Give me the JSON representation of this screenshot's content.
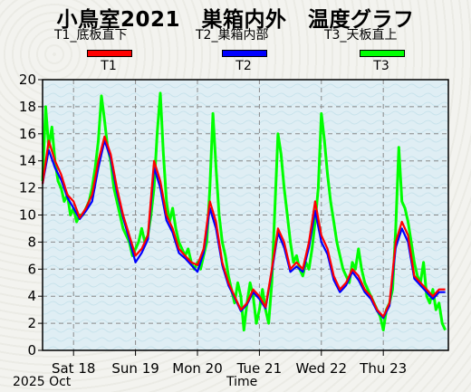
{
  "title": "小鳥室2021　巣箱内外　温度グラフ",
  "subtitles": [
    "T1_底板直下",
    "T2_巣箱内部",
    "T3_天板直上"
  ],
  "legend": [
    {
      "label": "T1",
      "color": "#ff0000"
    },
    {
      "label": "T2",
      "color": "#0000ff"
    },
    {
      "label": "T3",
      "color": "#00ff00"
    }
  ],
  "footer": {
    "year_month": "2025 Oct",
    "xlabel": "Time"
  },
  "chart_data": {
    "type": "line",
    "title": "小鳥室2021　巣箱内外　温度グラフ",
    "xlabel": "Time",
    "ylabel": "",
    "ylim": [
      0,
      20
    ],
    "yticks": [
      0,
      2,
      4,
      6,
      8,
      10,
      12,
      14,
      16,
      18,
      20
    ],
    "xlim_days": [
      0,
      6.55
    ],
    "xticks": [
      {
        "label": "Sat 18",
        "day": 0.5
      },
      {
        "label": "Sun 19",
        "day": 1.5
      },
      {
        "label": "Mon 20",
        "day": 2.5
      },
      {
        "label": "Tue 21",
        "day": 3.5
      },
      {
        "label": "Wed 22",
        "day": 4.5
      },
      {
        "label": "Thu 23",
        "day": 5.5
      }
    ],
    "grid": true,
    "series": [
      {
        "name": "T1",
        "color": "#ff0000",
        "x": [
          0.0,
          0.1,
          0.2,
          0.3,
          0.4,
          0.5,
          0.6,
          0.7,
          0.8,
          0.9,
          1.0,
          1.1,
          1.2,
          1.3,
          1.4,
          1.5,
          1.6,
          1.7,
          1.8,
          1.9,
          2.0,
          2.1,
          2.2,
          2.3,
          2.4,
          2.5,
          2.6,
          2.7,
          2.8,
          2.9,
          3.0,
          3.1,
          3.2,
          3.3,
          3.4,
          3.5,
          3.6,
          3.7,
          3.8,
          3.9,
          4.0,
          4.1,
          4.2,
          4.3,
          4.4,
          4.5,
          4.6,
          4.7,
          4.8,
          4.9,
          5.0,
          5.1,
          5.2,
          5.3,
          5.4,
          5.5,
          5.6,
          5.7,
          5.8,
          5.9,
          6.0,
          6.1,
          6.2,
          6.3,
          6.4,
          6.5
        ],
        "y": [
          12.3,
          15.5,
          14.0,
          13.0,
          11.5,
          11.0,
          9.8,
          10.5,
          11.5,
          14.0,
          15.8,
          14.5,
          12.0,
          10.0,
          8.5,
          7.0,
          7.5,
          8.5,
          14.0,
          12.5,
          10.0,
          9.0,
          7.5,
          7.0,
          6.5,
          6.3,
          7.5,
          11.0,
          9.5,
          6.5,
          5.0,
          4.0,
          3.0,
          3.5,
          4.5,
          4.0,
          3.2,
          6.0,
          9.0,
          8.0,
          6.0,
          6.5,
          6.0,
          8.0,
          11.0,
          8.5,
          7.5,
          5.5,
          4.5,
          5.0,
          6.0,
          5.5,
          4.5,
          4.0,
          3.0,
          2.5,
          3.5,
          8.0,
          9.5,
          8.5,
          5.5,
          5.0,
          4.5,
          4.0,
          4.5,
          4.5
        ]
      },
      {
        "name": "T2",
        "color": "#0000ff",
        "x": [
          0.0,
          0.1,
          0.2,
          0.3,
          0.4,
          0.5,
          0.6,
          0.7,
          0.8,
          0.9,
          1.0,
          1.1,
          1.2,
          1.3,
          1.4,
          1.5,
          1.6,
          1.7,
          1.8,
          1.9,
          2.0,
          2.1,
          2.2,
          2.3,
          2.4,
          2.5,
          2.6,
          2.7,
          2.8,
          2.9,
          3.0,
          3.1,
          3.2,
          3.3,
          3.4,
          3.5,
          3.6,
          3.7,
          3.8,
          3.9,
          4.0,
          4.1,
          4.2,
          4.3,
          4.4,
          4.5,
          4.6,
          4.7,
          4.8,
          4.9,
          5.0,
          5.1,
          5.2,
          5.3,
          5.4,
          5.5,
          5.6,
          5.7,
          5.8,
          5.9,
          6.0,
          6.1,
          6.2,
          6.3,
          6.4,
          6.5
        ],
        "y": [
          12.3,
          14.8,
          13.5,
          12.6,
          11.3,
          10.5,
          9.7,
          10.3,
          11.0,
          13.5,
          15.5,
          14.2,
          11.7,
          9.8,
          8.2,
          6.5,
          7.2,
          8.2,
          13.5,
          12.0,
          9.6,
          8.7,
          7.2,
          6.8,
          6.3,
          5.8,
          7.2,
          10.5,
          9.0,
          6.3,
          4.8,
          3.9,
          2.9,
          3.4,
          4.3,
          3.8,
          3.1,
          5.8,
          8.7,
          7.6,
          5.8,
          6.2,
          5.8,
          7.6,
          10.3,
          8.0,
          7.1,
          5.2,
          4.3,
          4.8,
          5.8,
          5.2,
          4.3,
          3.8,
          2.9,
          2.4,
          3.3,
          7.6,
          9.0,
          8.0,
          5.3,
          4.8,
          4.3,
          3.8,
          4.3,
          4.3
        ]
      },
      {
        "name": "T3",
        "color": "#00ff00",
        "x": [
          0.0,
          0.05,
          0.1,
          0.15,
          0.2,
          0.25,
          0.3,
          0.35,
          0.4,
          0.45,
          0.5,
          0.55,
          0.6,
          0.65,
          0.7,
          0.75,
          0.8,
          0.85,
          0.9,
          0.95,
          1.0,
          1.05,
          1.1,
          1.15,
          1.2,
          1.25,
          1.3,
          1.35,
          1.4,
          1.45,
          1.5,
          1.55,
          1.6,
          1.65,
          1.7,
          1.75,
          1.8,
          1.85,
          1.9,
          1.95,
          2.0,
          2.05,
          2.1,
          2.15,
          2.2,
          2.25,
          2.3,
          2.35,
          2.4,
          2.45,
          2.5,
          2.55,
          2.6,
          2.65,
          2.7,
          2.75,
          2.8,
          2.85,
          2.9,
          2.95,
          3.0,
          3.05,
          3.1,
          3.15,
          3.2,
          3.25,
          3.3,
          3.35,
          3.4,
          3.45,
          3.5,
          3.55,
          3.6,
          3.65,
          3.7,
          3.75,
          3.8,
          3.85,
          3.9,
          3.95,
          4.0,
          4.05,
          4.1,
          4.15,
          4.2,
          4.25,
          4.3,
          4.35,
          4.4,
          4.45,
          4.5,
          4.55,
          4.6,
          4.65,
          4.7,
          4.75,
          4.8,
          4.85,
          4.9,
          4.95,
          5.0,
          5.05,
          5.1,
          5.15,
          5.2,
          5.25,
          5.3,
          5.35,
          5.4,
          5.45,
          5.5,
          5.55,
          5.6,
          5.65,
          5.7,
          5.75,
          5.8,
          5.85,
          5.9,
          5.95,
          6.0,
          6.05,
          6.1,
          6.15,
          6.2,
          6.25,
          6.3,
          6.35,
          6.4,
          6.45,
          6.5
        ],
        "y": [
          12.5,
          18.0,
          15.0,
          16.5,
          14.0,
          12.5,
          12.0,
          11.0,
          11.5,
          10.0,
          10.5,
          9.5,
          10.0,
          10.0,
          10.5,
          11.0,
          12.0,
          13.5,
          15.5,
          18.8,
          17.0,
          15.0,
          14.0,
          12.0,
          11.0,
          10.0,
          9.0,
          8.5,
          8.0,
          7.0,
          7.5,
          8.0,
          9.0,
          8.0,
          8.5,
          10.0,
          12.0,
          16.0,
          19.0,
          14.5,
          11.0,
          9.5,
          10.5,
          9.0,
          8.0,
          7.5,
          7.0,
          7.5,
          6.5,
          6.0,
          6.5,
          6.0,
          7.0,
          8.0,
          12.0,
          17.5,
          13.5,
          10.0,
          8.0,
          7.0,
          5.5,
          4.5,
          3.5,
          5.0,
          4.0,
          1.5,
          3.5,
          5.0,
          4.0,
          2.0,
          3.0,
          4.5,
          3.0,
          2.0,
          5.0,
          10.5,
          16.0,
          14.5,
          12.0,
          10.0,
          8.0,
          6.5,
          7.0,
          6.0,
          5.5,
          6.5,
          6.0,
          7.5,
          9.5,
          12.0,
          17.5,
          15.5,
          13.0,
          11.0,
          9.5,
          8.0,
          7.0,
          6.0,
          5.5,
          5.0,
          6.5,
          6.0,
          7.5,
          6.0,
          5.0,
          4.5,
          4.0,
          3.5,
          3.0,
          2.5,
          1.5,
          3.0,
          3.5,
          4.5,
          9.0,
          15.0,
          11.0,
          10.5,
          9.5,
          8.0,
          6.5,
          5.5,
          5.0,
          6.5,
          4.0,
          3.5,
          4.5,
          3.0,
          3.5,
          2.0,
          1.5
        ]
      }
    ]
  }
}
